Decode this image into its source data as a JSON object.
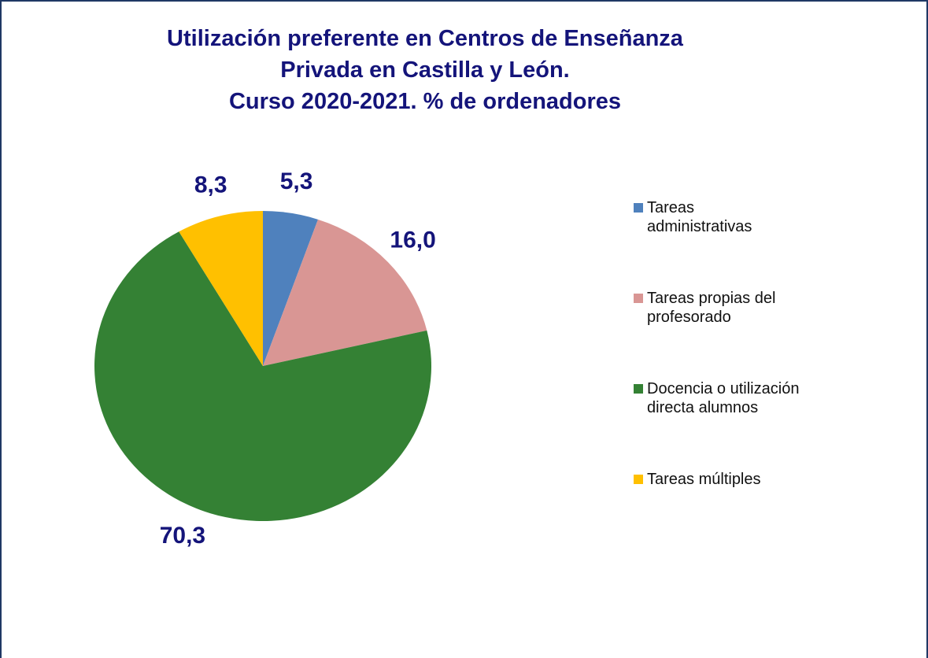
{
  "chart_data": {
    "type": "pie",
    "title": [
      "Utilización preferente en Centros de Enseñanza",
      "Privada en Castilla y León.",
      "Curso 2020-2021. % de ordenadores"
    ],
    "categories": [
      "Tareas administrativas",
      "Tareas propias del profesorado",
      "Docencia o utilización directa alumnos",
      "Tareas múltiples"
    ],
    "values": [
      5.3,
      16.0,
      70.3,
      8.3
    ],
    "value_labels": [
      "5,3",
      "16,0",
      "70,3",
      "8,3"
    ],
    "colors": [
      "#4f81bd",
      "#d99694",
      "#348134",
      "#ffc000"
    ],
    "legend": "right"
  }
}
